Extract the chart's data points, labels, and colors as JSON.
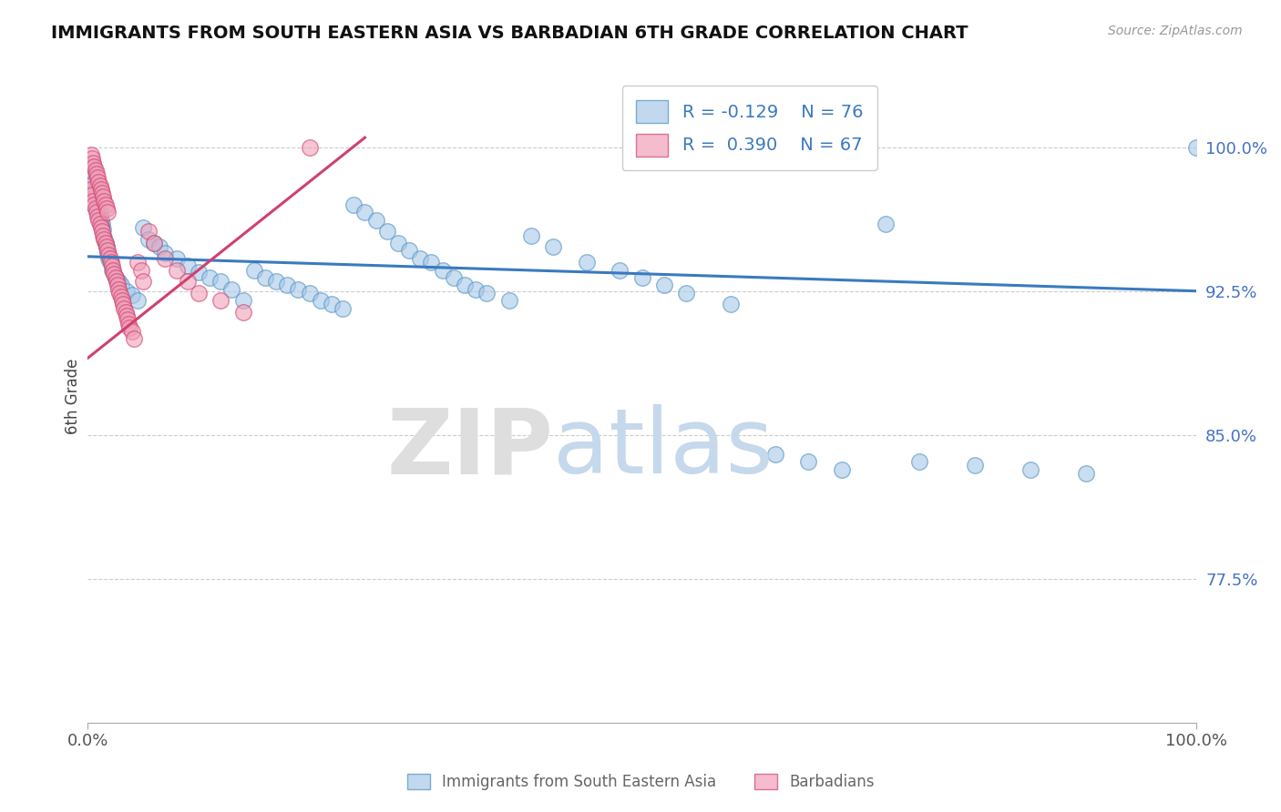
{
  "title": "IMMIGRANTS FROM SOUTH EASTERN ASIA VS BARBADIAN 6TH GRADE CORRELATION CHART",
  "source": "Source: ZipAtlas.com",
  "ylabel": "6th Grade",
  "yticks": [
    0.775,
    0.85,
    0.925,
    1.0
  ],
  "ytick_labels": [
    "77.5%",
    "85.0%",
    "92.5%",
    "100.0%"
  ],
  "xlim": [
    0.0,
    1.0
  ],
  "ylim": [
    0.7,
    1.04
  ],
  "legend_blue_r": "R = -0.129",
  "legend_blue_n": "N = 76",
  "legend_pink_r": "R =  0.390",
  "legend_pink_n": "N = 67",
  "blue_color": "#a8c8e8",
  "pink_color": "#f0a0b8",
  "blue_edge_color": "#5090c0",
  "pink_edge_color": "#d04070",
  "blue_line_color": "#3a7abf",
  "pink_line_color": "#d04070",
  "tick_color": "#4472c4",
  "blue_trend_x0": 0.0,
  "blue_trend_y0": 0.943,
  "blue_trend_x1": 1.0,
  "blue_trend_y1": 0.925,
  "pink_trend_x0": 0.0,
  "pink_trend_y0": 0.89,
  "pink_trend_x1": 0.25,
  "pink_trend_y1": 1.005,
  "blue_scatter_x": [
    0.003,
    0.005,
    0.006,
    0.007,
    0.008,
    0.009,
    0.01,
    0.011,
    0.012,
    0.013,
    0.014,
    0.015,
    0.016,
    0.017,
    0.018,
    0.019,
    0.02,
    0.022,
    0.025,
    0.028,
    0.03,
    0.035,
    0.04,
    0.045,
    0.05,
    0.055,
    0.06,
    0.065,
    0.07,
    0.08,
    0.09,
    0.1,
    0.11,
    0.12,
    0.13,
    0.14,
    0.15,
    0.16,
    0.17,
    0.18,
    0.19,
    0.2,
    0.21,
    0.22,
    0.23,
    0.24,
    0.25,
    0.26,
    0.27,
    0.28,
    0.29,
    0.3,
    0.31,
    0.32,
    0.33,
    0.34,
    0.35,
    0.36,
    0.38,
    0.4,
    0.42,
    0.45,
    0.48,
    0.5,
    0.52,
    0.54,
    0.58,
    0.62,
    0.65,
    0.68,
    0.72,
    0.75,
    0.8,
    0.85,
    0.9,
    1.0
  ],
  "blue_scatter_y": [
    0.99,
    0.985,
    0.982,
    0.978,
    0.975,
    0.971,
    0.968,
    0.965,
    0.962,
    0.96,
    0.957,
    0.953,
    0.95,
    0.948,
    0.945,
    0.942,
    0.94,
    0.936,
    0.932,
    0.93,
    0.928,
    0.925,
    0.923,
    0.92,
    0.958,
    0.952,
    0.95,
    0.948,
    0.945,
    0.942,
    0.938,
    0.935,
    0.932,
    0.93,
    0.926,
    0.92,
    0.936,
    0.932,
    0.93,
    0.928,
    0.926,
    0.924,
    0.92,
    0.918,
    0.916,
    0.97,
    0.966,
    0.962,
    0.956,
    0.95,
    0.946,
    0.942,
    0.94,
    0.936,
    0.932,
    0.928,
    0.926,
    0.924,
    0.92,
    0.954,
    0.948,
    0.94,
    0.936,
    0.932,
    0.928,
    0.924,
    0.918,
    0.84,
    0.836,
    0.832,
    0.96,
    0.836,
    0.834,
    0.832,
    0.83,
    1.0
  ],
  "pink_scatter_x": [
    0.002,
    0.003,
    0.004,
    0.005,
    0.006,
    0.007,
    0.008,
    0.009,
    0.01,
    0.011,
    0.012,
    0.013,
    0.014,
    0.015,
    0.016,
    0.017,
    0.018,
    0.019,
    0.02,
    0.021,
    0.022,
    0.023,
    0.024,
    0.025,
    0.026,
    0.027,
    0.028,
    0.029,
    0.03,
    0.031,
    0.032,
    0.033,
    0.034,
    0.035,
    0.036,
    0.037,
    0.038,
    0.04,
    0.042,
    0.045,
    0.048,
    0.05,
    0.055,
    0.06,
    0.07,
    0.08,
    0.09,
    0.1,
    0.12,
    0.14,
    0.003,
    0.004,
    0.005,
    0.006,
    0.007,
    0.008,
    0.009,
    0.01,
    0.011,
    0.012,
    0.013,
    0.014,
    0.015,
    0.016,
    0.017,
    0.018,
    0.2
  ],
  "pink_scatter_y": [
    0.98,
    0.978,
    0.975,
    0.972,
    0.97,
    0.968,
    0.966,
    0.964,
    0.962,
    0.96,
    0.958,
    0.956,
    0.954,
    0.952,
    0.95,
    0.948,
    0.946,
    0.944,
    0.942,
    0.94,
    0.938,
    0.936,
    0.934,
    0.932,
    0.93,
    0.928,
    0.926,
    0.924,
    0.922,
    0.92,
    0.918,
    0.916,
    0.914,
    0.912,
    0.91,
    0.908,
    0.906,
    0.904,
    0.9,
    0.94,
    0.936,
    0.93,
    0.956,
    0.95,
    0.942,
    0.936,
    0.93,
    0.924,
    0.92,
    0.914,
    0.996,
    0.994,
    0.992,
    0.99,
    0.988,
    0.986,
    0.984,
    0.982,
    0.98,
    0.978,
    0.976,
    0.974,
    0.972,
    0.97,
    0.968,
    0.966,
    1.0
  ]
}
